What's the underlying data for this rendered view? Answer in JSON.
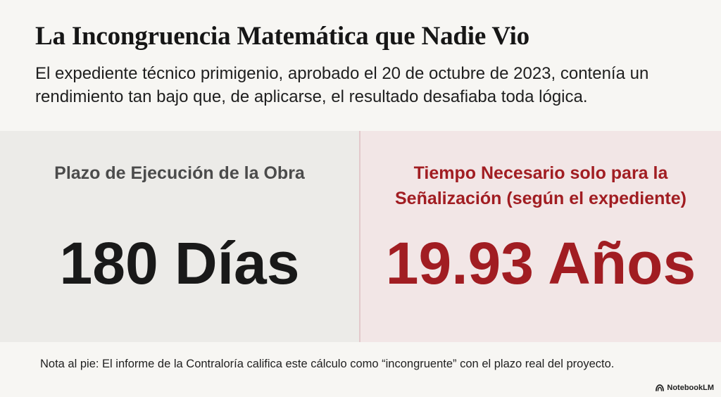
{
  "slide": {
    "title": "La Incongruencia Matemática que Nadie Vio",
    "subtitle": "El expediente técnico primigenio, aprobado el 20 de octubre de 2023, contenía un rendimiento tan bajo que, de aplicarse, el resultado desafiaba toda lógica.",
    "left_panel": {
      "label": "Plazo de Ejecución de la Obra",
      "value": "180 Días"
    },
    "right_panel": {
      "label_line1": "Tiempo Necesario solo para la",
      "label_line2": "Señalización (según el expediente)",
      "value": "19.93 Años"
    },
    "footnote": "Nota al pie: El informe de la Contraloría califica este cálculo como “incongruente” con el plazo real del proyecto."
  },
  "brand": {
    "name": "NotebookLM",
    "icon": "notebooklm-logo-icon"
  },
  "colors": {
    "background": "#f7f6f3",
    "left_panel_bg": "#ecebe8",
    "right_panel_bg": "#f2e6e6",
    "accent_red": "#a11d22",
    "dark_text": "#191919"
  }
}
